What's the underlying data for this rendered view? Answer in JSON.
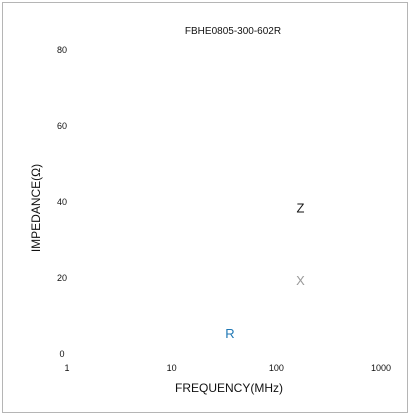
{
  "chart_data": {
    "type": "line",
    "title": "FBHE0805-300-602R",
    "xlabel": "FREQUENCY(MHz)",
    "ylabel": "IMPEDANCE(Ω)",
    "x_scale": "log",
    "xlim": [
      1,
      1000
    ],
    "ylim": [
      0,
      80
    ],
    "x_ticks": [
      "1",
      "10",
      "100",
      "1000"
    ],
    "y_ticks": [
      "0",
      "20",
      "40",
      "60",
      "80"
    ],
    "grid": false,
    "series": [
      {
        "name": "Z",
        "label_at": {
          "x": 170,
          "y": 38.5
        },
        "color": "#111111",
        "values": []
      },
      {
        "name": "X",
        "label_at": {
          "x": 170,
          "y": 19.5
        },
        "color": "#9a9a9a",
        "values": []
      },
      {
        "name": "R",
        "label_at": {
          "x": 36,
          "y": 5.5
        },
        "color": "#1f77b4",
        "values": []
      }
    ]
  }
}
